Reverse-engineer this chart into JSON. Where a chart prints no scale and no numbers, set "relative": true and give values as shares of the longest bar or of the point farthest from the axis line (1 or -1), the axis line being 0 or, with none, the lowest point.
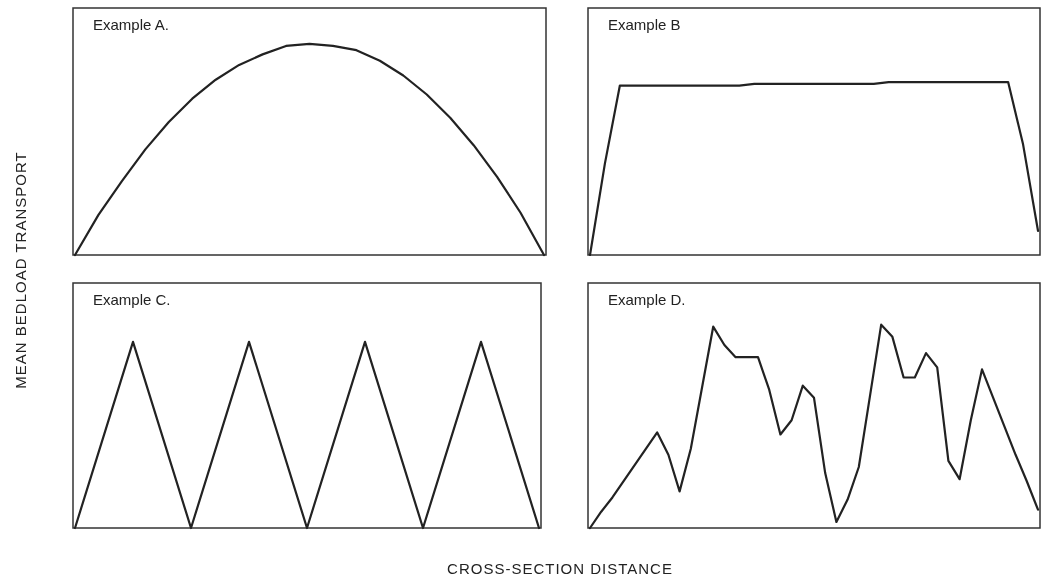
{
  "chart_data": [
    {
      "type": "line",
      "title": "Example A.",
      "ylabel": "MEAN BEDLOAD TRANSPORT",
      "relative": true,
      "categories": [
        null,
        null,
        null,
        null,
        null,
        null,
        null,
        null,
        null,
        null,
        null,
        null,
        null,
        null,
        null,
        null,
        null,
        null,
        null,
        null,
        null
      ],
      "series": [
        {
          "color": "#222222",
          "values": [
            0,
            0.19,
            0.35,
            0.5,
            0.63,
            0.74,
            0.83,
            0.9,
            0.95,
            0.99,
            1.0,
            0.99,
            0.97,
            0.92,
            0.85,
            0.76,
            0.65,
            0.52,
            0.37,
            0.2,
            0
          ]
        }
      ]
    },
    {
      "type": "line",
      "title": "Example B",
      "relative": true,
      "categories": [
        null,
        null,
        null,
        null,
        null,
        null,
        null,
        null,
        null,
        null,
        null,
        null,
        null,
        null,
        null,
        null,
        null,
        null,
        null,
        null,
        null,
        null,
        null,
        null,
        null,
        null,
        null,
        null,
        null,
        null,
        null
      ],
      "series": [
        {
          "color": "#222222",
          "values": [
            0,
            0.53,
            0.98,
            0.98,
            0.98,
            0.98,
            0.98,
            0.98,
            0.98,
            0.98,
            0.98,
            0.99,
            0.99,
            0.99,
            0.99,
            0.99,
            0.99,
            0.99,
            0.99,
            0.99,
            1.0,
            1.0,
            1.0,
            1.0,
            1.0,
            1.0,
            1.0,
            1.0,
            1.0,
            0.64,
            0.14
          ]
        }
      ]
    },
    {
      "type": "line",
      "title": "Example C.",
      "xlabel": "CROSS-SECTION DISTANCE",
      "relative": true,
      "categories": [
        null,
        null,
        null,
        null,
        null,
        null,
        null,
        null,
        null
      ],
      "series": [
        {
          "color": "#222222",
          "values": [
            0,
            1,
            0,
            1,
            0,
            1,
            0,
            1,
            0
          ]
        }
      ]
    },
    {
      "type": "line",
      "title": "Example D.",
      "relative": true,
      "categories": [
        null,
        null,
        null,
        null,
        null,
        null,
        null,
        null,
        null,
        null,
        null,
        null,
        null,
        null,
        null,
        null,
        null,
        null,
        null,
        null,
        null,
        null,
        null,
        null,
        null,
        null,
        null,
        null,
        null,
        null,
        null,
        null,
        null,
        null,
        null,
        null,
        null,
        null,
        null,
        null,
        null
      ],
      "series": [
        {
          "color": "#222222",
          "values": [
            0,
            0.08,
            0.15,
            0.23,
            0.31,
            0.39,
            0.47,
            0.36,
            0.18,
            0.39,
            0.69,
            0.99,
            0.9,
            0.84,
            0.84,
            0.84,
            0.68,
            0.46,
            0.53,
            0.7,
            0.64,
            0.27,
            0.03,
            0.14,
            0.3,
            0.65,
            1.0,
            0.94,
            0.74,
            0.74,
            0.86,
            0.79,
            0.33,
            0.24,
            0.53,
            0.78,
            0.64,
            0.5,
            0.36,
            0.23,
            0.09
          ]
        }
      ]
    }
  ]
}
